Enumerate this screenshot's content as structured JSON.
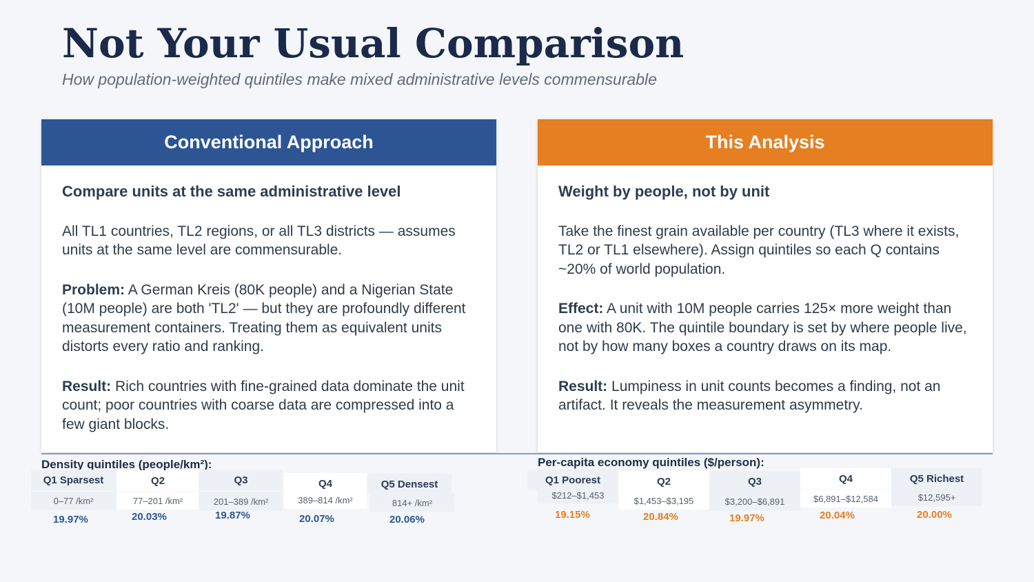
{
  "title": "Not Your Usual Comparison",
  "subtitle": "How population-weighted quintiles make mixed administrative levels commensurable",
  "left_card": {
    "header": "Conventional Approach",
    "lead": "Compare units at the same administrative level",
    "para1": "All TL1 countries, TL2 regions, or all TL3 districts — assumes units at the same level are commensurable.",
    "problem_label": "Problem:",
    "problem_text": " A German Kreis (80K people) and a Nigerian State (10M people) are both 'TL2' — but they are profoundly different measurement containers. Treating them as equivalent units distorts every ratio and ranking.",
    "result_label": "Result:",
    "result_text": " Rich countries with fine-grained data dominate the unit count; poor countries with coarse data are compressed into a few giant blocks."
  },
  "right_card": {
    "header": "This Analysis",
    "lead": "Weight by people, not by unit",
    "para1": "Take the finest grain available per country (TL3 where it exists, TL2 or TL1 elsewhere). Assign quintiles so each Q contains ~20% of world population.",
    "effect_label": "Effect:",
    "effect_text": " A unit with 10M people carries 125× more weight than one with 80K. The quintile boundary is set by where people live, not by how many boxes a country draws on its map.",
    "result_label": "Result:",
    "result_text": " Lumpiness in unit counts becomes a finding, not an artifact. It reveals the measurement asymmetry."
  },
  "density": {
    "label": "Density quintiles (people/km²):",
    "quintiles": [
      {
        "name": "Q1 Sparsest",
        "range": "0–77 /km²",
        "pct": "19.97%"
      },
      {
        "name": "Q2",
        "range": "77–201 /km²",
        "pct": "20.03%"
      },
      {
        "name": "Q3",
        "range": "201–389 /km²",
        "pct": "19.87%"
      },
      {
        "name": "Q4",
        "range": "389–814 /km²",
        "pct": "20.07%"
      },
      {
        "name": "Q5 Densest",
        "range": "814+ /km²",
        "pct": "20.06%"
      }
    ]
  },
  "economy": {
    "label": "Per-capita economy quintiles ($/person):",
    "quintiles": [
      {
        "name": "Q1 Poorest",
        "range": "$212–$1,453",
        "pct": "19.15%"
      },
      {
        "name": "Q2",
        "range": "$1,453–$3,195",
        "pct": "20.84%"
      },
      {
        "name": "Q3",
        "range": "$3,200–$6,891",
        "pct": "19.97%"
      },
      {
        "name": "Q4",
        "range": "$6,891–$12,584",
        "pct": "20.04%"
      },
      {
        "name": "Q5 Richest",
        "range": "$12,595+",
        "pct": "20.00%"
      }
    ]
  },
  "colors": {
    "conventional": "#2d5594",
    "analysis": "#e67e22",
    "title": "#1b2a4a"
  }
}
